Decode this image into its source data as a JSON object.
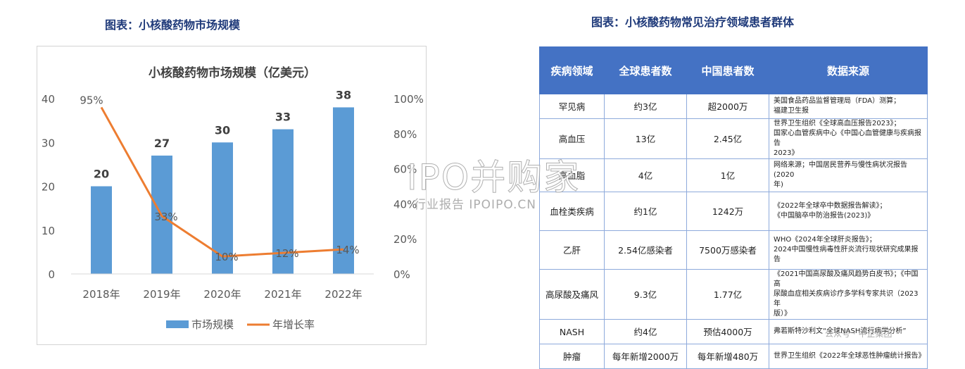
{
  "left_caption": "图表：小核酸药物市场规模",
  "right_caption": "图表：小核酸药物常见治疗领域患者群体",
  "chart_data": {
    "type": "bar+line",
    "title": "小核酸药物市场规模（亿美元）",
    "categories": [
      "2018年",
      "2019年",
      "2020年",
      "2021年",
      "2022年"
    ],
    "series": [
      {
        "name": "市场规模",
        "type": "bar",
        "axis": "left",
        "values": [
          20,
          27,
          30,
          33,
          38
        ],
        "labels": [
          "20",
          "27",
          "30",
          "33",
          "38"
        ],
        "color": "#5b9bd5"
      },
      {
        "name": "年增长率",
        "type": "line",
        "axis": "right",
        "values": [
          95,
          33,
          10,
          12,
          14
        ],
        "labels": [
          "95%",
          "33%",
          "10%",
          "12%",
          "14%"
        ],
        "color": "#ed7d31"
      }
    ],
    "y_left": {
      "min": 0,
      "max": 40,
      "ticks": [
        "0",
        "10",
        "20",
        "30",
        "40"
      ]
    },
    "y_right": {
      "min": 0,
      "max": 100,
      "ticks": [
        "0%",
        "20%",
        "40%",
        "60%",
        "80%",
        "100%"
      ]
    },
    "grid": false,
    "legend_position": "bottom"
  },
  "table": {
    "headers": [
      "疾病领域",
      "全球患者数",
      "中国患者数",
      "数据来源"
    ],
    "rows": [
      {
        "disease": "罕见病",
        "global": "约3亿",
        "china": "超2000万",
        "source": [
          "美国食品药品监督管理局（FDA）测算；",
          "福建卫生报"
        ]
      },
      {
        "disease": "高血压",
        "global": "13亿",
        "china": "2.45亿",
        "source": [
          "世界卫生组织《全球高血压报告2023》；",
          "国家心血管疾病中心《中国心血管健康与疾病报告",
          "2023》"
        ]
      },
      {
        "disease": "高血脂",
        "global": "4亿",
        "china": "1亿",
        "source": [
          "网络来源；中国居民营养与慢性病状况报告(2020",
          "年)"
        ]
      },
      {
        "disease": "血栓类疾病",
        "global": "约1亿",
        "china": "1242万",
        "source": [
          "《2022年全球卒中数据报告解读》；",
          "《中国脑卒中防治报告(2023)》"
        ]
      },
      {
        "disease": "乙肝",
        "global": "2.54亿感染者",
        "china": "7500万感染者",
        "source": [
          "WHO《2024年全球肝炎报告》；",
          "2024中国慢性病毒性肝炎流行现状研究成果报告"
        ]
      },
      {
        "disease": "高尿酸及痛风",
        "global": "9.3亿",
        "china": "1.77亿",
        "source": [
          "《2021中国高尿酸及痛风趋势白皮书》；《中国高",
          "尿酸血症相关疾病诊疗多学科专家共识（2023年",
          "版）》"
        ]
      },
      {
        "disease": "NASH",
        "global": "约4亿",
        "china": "预估4000万",
        "source": [
          "弗若斯特沙利文“全球NASH流行病学分析”"
        ]
      },
      {
        "disease": "肿瘤",
        "global": "每年新增2000万",
        "china": "每年新增480万",
        "source": [
          "世界卫生组织《2022年全球恶性肿瘤统计报告》"
        ]
      }
    ]
  },
  "watermark": {
    "big": "IPO并购家",
    "small": "行业报告 IPOIPO.CN",
    "corner": "公众号 · 中企集团"
  }
}
